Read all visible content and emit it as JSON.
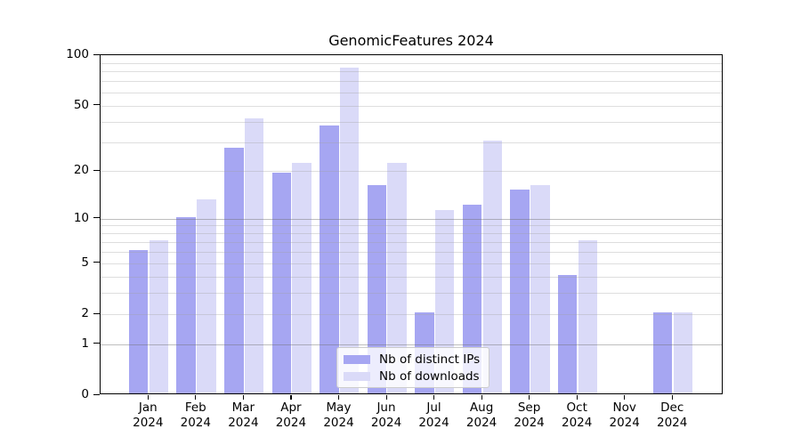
{
  "chart_data": {
    "type": "bar",
    "title": "GenomicFeatures 2024",
    "categories": [
      "Jan 2024",
      "Feb 2024",
      "Mar 2024",
      "Apr 2024",
      "May 2024",
      "Jun 2024",
      "Jul 2024",
      "Aug 2024",
      "Sep 2024",
      "Oct 2024",
      "Nov 2024",
      "Dec 2024"
    ],
    "series": [
      {
        "name": "Nb of distinct IPs",
        "color": "#a6a6f2",
        "values": [
          6,
          10,
          27,
          19,
          37,
          16,
          2,
          12,
          15,
          4,
          0,
          2
        ]
      },
      {
        "name": "Nb of downloads",
        "color": "#dadaf8",
        "values": [
          7,
          13,
          41,
          22,
          82,
          22,
          11,
          30,
          16,
          7,
          0,
          2
        ]
      }
    ],
    "y_axis": {
      "scale": "log1p",
      "range": [
        0,
        100
      ],
      "ticks": [
        0,
        1,
        2,
        5,
        10,
        20,
        50,
        100
      ],
      "major_gridlines": [
        1,
        10
      ],
      "minor_gridlines": [
        2,
        3,
        4,
        5,
        6,
        7,
        8,
        9,
        20,
        30,
        40,
        50,
        60,
        70,
        80,
        90
      ]
    },
    "xlabel": "",
    "ylabel": "",
    "grid": true,
    "legend_position": "lower-center-inside"
  },
  "colors": {
    "background": "#ffffff",
    "spine": "#000000",
    "legend_border": "#cccccc",
    "text": "#000000"
  }
}
